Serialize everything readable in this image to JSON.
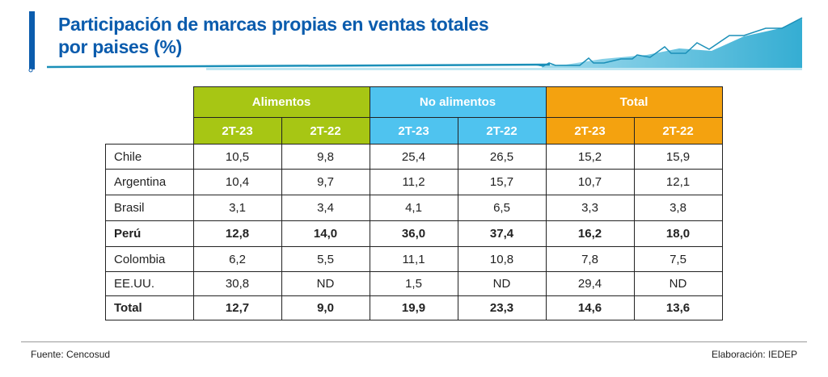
{
  "title_line1": "Participación de marcas propias en ventas totales",
  "title_line2": "por paises (%)",
  "chart_data": {
    "type": "table",
    "title": "Participación de marcas propias en ventas totales por paises (%)",
    "groups": [
      {
        "name": "Alimentos",
        "color": "#a7c614",
        "periods": [
          "2T-23",
          "2T-22"
        ]
      },
      {
        "name": "No alimentos",
        "color": "#4fc3ef",
        "periods": [
          "2T-23",
          "2T-22"
        ]
      },
      {
        "name": "Total",
        "color": "#f4a20f",
        "periods": [
          "2T-23",
          "2T-22"
        ]
      }
    ],
    "rows": [
      {
        "label": "Chile",
        "bold": false,
        "values": [
          "10,5",
          "9,8",
          "25,4",
          "26,5",
          "15,2",
          "15,9"
        ]
      },
      {
        "label": "Argentina",
        "bold": false,
        "values": [
          "10,4",
          "9,7",
          "11,2",
          "15,7",
          "10,7",
          "12,1"
        ]
      },
      {
        "label": "Brasil",
        "bold": false,
        "values": [
          "3,1",
          "3,4",
          "4,1",
          "6,5",
          "3,3",
          "3,8"
        ]
      },
      {
        "label": "Perú",
        "bold": true,
        "values": [
          "12,8",
          "14,0",
          "36,0",
          "37,4",
          "16,2",
          "18,0"
        ]
      },
      {
        "label": "Colombia",
        "bold": false,
        "values": [
          "6,2",
          "5,5",
          "11,1",
          "10,8",
          "7,8",
          "7,5"
        ]
      },
      {
        "label": "EE.UU.",
        "bold": false,
        "values": [
          "30,8",
          "ND",
          "1,5",
          "ND",
          "29,4",
          "ND"
        ]
      },
      {
        "label": "Total",
        "bold": true,
        "values": [
          "12,7",
          "9,0",
          "19,9",
          "23,3",
          "14,6",
          "13,6"
        ]
      }
    ]
  },
  "footer": {
    "source": "Fuente: Cencosud",
    "credit": "Elaboración: IEDEP"
  }
}
